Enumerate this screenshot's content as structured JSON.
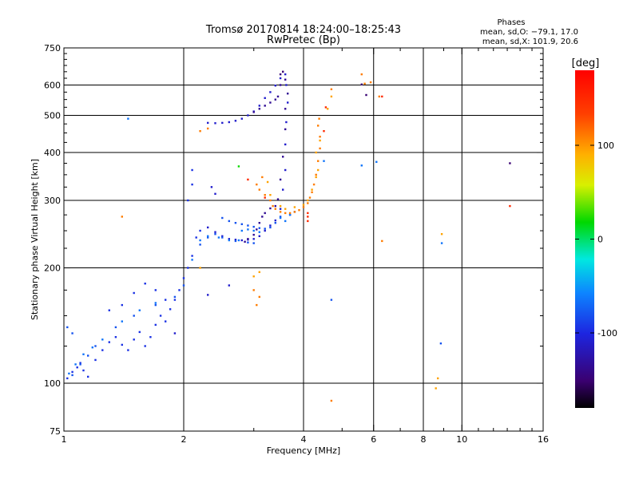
{
  "chart_data": {
    "type": "scatter",
    "title": "Tromsø 20170814 18:24:00–18:25:43",
    "subtitle": "RwPretec (Bp)",
    "xlabel": "Frequency [MHz]",
    "ylabel": "Stationary phase Virtual Height [km]",
    "x_scale": "log2",
    "y_scale": "log",
    "xlim": [
      1,
      16
    ],
    "ylim": [
      75,
      750
    ],
    "x_ticks": [
      1,
      2,
      4,
      6,
      8,
      10,
      16
    ],
    "x_tick_labels": [
      "1",
      "2",
      "4",
      "6",
      "8",
      "10",
      "16"
    ],
    "y_ticks": [
      75,
      100,
      200,
      300,
      400,
      500,
      600,
      750
    ],
    "y_tick_labels": [
      "75",
      "100",
      "200",
      "300",
      "400",
      "500",
      "600",
      "750"
    ],
    "grid": true,
    "stats": {
      "header": "Phases",
      "line1": "mean, sd,O: −79.1, 17.0",
      "line2": "mean, sd,X: 101.9, 20.6"
    },
    "colorbar": {
      "label": "[deg]",
      "min": -180,
      "max": 180,
      "ticks": [
        100,
        0,
        -100
      ],
      "tick_labels": [
        "100",
        "0",
        "-100"
      ]
    },
    "series": [
      {
        "phase": -95,
        "points": [
          [
            1.02,
            103
          ],
          [
            1.05,
            107
          ],
          [
            1.08,
            110
          ],
          [
            1.1,
            113
          ],
          [
            1.12,
            108
          ],
          [
            1.15,
            104
          ],
          [
            1.2,
            115
          ],
          [
            1.25,
            122
          ],
          [
            1.3,
            128
          ],
          [
            1.35,
            132
          ],
          [
            1.4,
            126
          ],
          [
            1.45,
            122
          ],
          [
            1.5,
            130
          ],
          [
            1.55,
            136
          ],
          [
            1.6,
            125
          ],
          [
            1.65,
            132
          ],
          [
            1.7,
            142
          ],
          [
            1.75,
            150
          ],
          [
            1.8,
            145
          ],
          [
            1.85,
            156
          ],
          [
            1.9,
            165
          ],
          [
            1.95,
            175
          ],
          [
            2.0,
            188
          ],
          [
            2.05,
            200
          ],
          [
            2.1,
            215
          ],
          [
            2.15,
            240
          ],
          [
            2.2,
            250
          ],
          [
            2.05,
            300
          ],
          [
            2.1,
            330
          ],
          [
            2.1,
            360
          ],
          [
            1.3,
            155
          ],
          [
            1.4,
            160
          ],
          [
            1.5,
            172
          ],
          [
            1.6,
            182
          ],
          [
            1.7,
            175
          ],
          [
            1.8,
            165
          ]
        ]
      },
      {
        "phase": -110,
        "points": [
          [
            2.3,
            255
          ],
          [
            2.4,
            248
          ],
          [
            2.5,
            242
          ],
          [
            2.6,
            238
          ],
          [
            2.7,
            237
          ],
          [
            2.8,
            236
          ],
          [
            2.9,
            237
          ],
          [
            3.0,
            238
          ],
          [
            3.1,
            242
          ],
          [
            3.2,
            250
          ],
          [
            3.3,
            258
          ],
          [
            3.4,
            266
          ],
          [
            3.5,
            285
          ],
          [
            3.55,
            320
          ],
          [
            3.6,
            360
          ],
          [
            3.6,
            420
          ],
          [
            3.62,
            480
          ],
          [
            3.65,
            540
          ],
          [
            3.62,
            600
          ],
          [
            3.6,
            640
          ],
          [
            3.5,
            625
          ],
          [
            3.4,
            598
          ],
          [
            3.3,
            575
          ],
          [
            3.2,
            555
          ],
          [
            3.1,
            530
          ],
          [
            3.0,
            512
          ],
          [
            2.9,
            500
          ],
          [
            2.8,
            490
          ],
          [
            2.7,
            484
          ],
          [
            2.6,
            480
          ],
          [
            2.5,
            478
          ],
          [
            2.4,
            477
          ],
          [
            2.3,
            478
          ],
          [
            2.35,
            325
          ],
          [
            2.4,
            312
          ],
          [
            2.6,
            180
          ],
          [
            2.3,
            170
          ],
          [
            1.9,
            135
          ]
        ]
      },
      {
        "phase": -135,
        "points": [
          [
            2.85,
            234
          ],
          [
            2.9,
            238
          ],
          [
            3.0,
            244
          ],
          [
            3.05,
            252
          ],
          [
            3.1,
            262
          ],
          [
            3.15,
            272
          ],
          [
            3.2,
            278
          ],
          [
            3.3,
            286
          ],
          [
            3.4,
            290
          ],
          [
            3.45,
            302
          ],
          [
            3.5,
            340
          ],
          [
            3.55,
            390
          ],
          [
            3.6,
            460
          ],
          [
            3.6,
            520
          ],
          [
            3.65,
            570
          ],
          [
            3.6,
            620
          ],
          [
            3.5,
            600
          ],
          [
            3.45,
            560
          ],
          [
            3.0,
            510
          ],
          [
            3.1,
            520
          ],
          [
            3.2,
            530
          ],
          [
            3.3,
            540
          ],
          [
            3.4,
            550
          ]
        ]
      },
      {
        "phase": -80,
        "points": [
          [
            1.05,
            105
          ],
          [
            1.1,
            112
          ],
          [
            1.15,
            118
          ],
          [
            1.2,
            125
          ],
          [
            1.35,
            140
          ],
          [
            1.5,
            150
          ],
          [
            1.7,
            160
          ],
          [
            1.9,
            168
          ],
          [
            2.0,
            180
          ],
          [
            2.2,
            230
          ],
          [
            2.3,
            240
          ],
          [
            2.4,
            245
          ],
          [
            2.5,
            240
          ],
          [
            2.7,
            235
          ],
          [
            2.9,
            233
          ],
          [
            3.0,
            232
          ],
          [
            2.5,
            270
          ],
          [
            2.6,
            265
          ],
          [
            2.7,
            262
          ],
          [
            2.8,
            260
          ],
          [
            2.9,
            258
          ],
          [
            3.0,
            256
          ],
          [
            3.1,
            254
          ],
          [
            3.2,
            253
          ],
          [
            3.3,
            255
          ],
          [
            3.4,
            262
          ],
          [
            3.5,
            272
          ],
          [
            3.7,
            275
          ],
          [
            3.8,
            280
          ],
          [
            4.7,
            165
          ],
          [
            8.85,
            127
          ],
          [
            1.02,
            140
          ],
          [
            1.05,
            135
          ]
        ]
      },
      {
        "phase": -65,
        "points": [
          [
            1.03,
            106
          ],
          [
            1.07,
            112
          ],
          [
            1.12,
            119
          ],
          [
            1.18,
            124
          ],
          [
            1.25,
            130
          ],
          [
            1.4,
            145
          ],
          [
            1.55,
            155
          ],
          [
            1.7,
            162
          ],
          [
            2.1,
            210
          ],
          [
            2.2,
            236
          ],
          [
            2.3,
            242
          ],
          [
            2.45,
            240
          ],
          [
            2.6,
            236
          ],
          [
            2.75,
            236
          ],
          [
            2.8,
            250
          ],
          [
            2.9,
            252
          ],
          [
            3.0,
            250
          ],
          [
            3.1,
            248
          ],
          [
            3.5,
            270
          ],
          [
            3.6,
            265
          ],
          [
            3.7,
            275
          ],
          [
            1.45,
            490
          ],
          [
            4.5,
            380
          ],
          [
            6.1,
            378
          ],
          [
            5.6,
            370
          ],
          [
            8.9,
            232
          ]
        ]
      },
      {
        "phase": 110,
        "points": [
          [
            3.3,
            300
          ],
          [
            3.35,
            290
          ],
          [
            3.4,
            285
          ],
          [
            3.5,
            280
          ],
          [
            3.6,
            278
          ],
          [
            3.7,
            278
          ],
          [
            3.8,
            280
          ],
          [
            3.9,
            283
          ],
          [
            4.0,
            288
          ],
          [
            4.1,
            295
          ],
          [
            4.15,
            305
          ],
          [
            4.2,
            315
          ],
          [
            4.25,
            330
          ],
          [
            4.3,
            350
          ],
          [
            4.35,
            380
          ],
          [
            4.4,
            410
          ],
          [
            4.4,
            440
          ],
          [
            4.35,
            470
          ],
          [
            4.38,
            490
          ],
          [
            3.2,
            310
          ],
          [
            3.1,
            320
          ],
          [
            3.05,
            330
          ],
          [
            3.15,
            345
          ],
          [
            4.7,
            585
          ],
          [
            5.6,
            640
          ],
          [
            5.7,
            605
          ],
          [
            5.9,
            610
          ],
          [
            6.2,
            560
          ],
          [
            4.7,
            90
          ],
          [
            6.3,
            235
          ],
          [
            3.0,
            175
          ],
          [
            3.05,
            160
          ],
          [
            3.1,
            168
          ],
          [
            2.2,
            455
          ],
          [
            2.3,
            462
          ],
          [
            1.4,
            272
          ]
        ]
      },
      {
        "phase": 95,
        "points": [
          [
            3.3,
            310
          ],
          [
            3.5,
            290
          ],
          [
            3.6,
            285
          ],
          [
            3.8,
            288
          ],
          [
            4.0,
            292
          ],
          [
            4.1,
            300
          ],
          [
            4.2,
            320
          ],
          [
            4.3,
            345
          ],
          [
            4.35,
            360
          ],
          [
            4.3,
            400
          ],
          [
            4.4,
            430
          ],
          [
            3.25,
            335
          ],
          [
            4.6,
            520
          ],
          [
            4.7,
            560
          ],
          [
            3.1,
            195
          ],
          [
            3.0,
            190
          ],
          [
            8.7,
            103
          ],
          [
            8.6,
            97
          ],
          [
            8.9,
            245
          ],
          [
            2.2,
            200
          ]
        ]
      },
      {
        "phase": 150,
        "points": [
          [
            4.1,
            265
          ],
          [
            4.1,
            272
          ],
          [
            4.1,
            278
          ],
          [
            4.5,
            455
          ],
          [
            4.55,
            525
          ],
          [
            6.3,
            560
          ],
          [
            13.2,
            290
          ],
          [
            3.2,
            305
          ],
          [
            2.9,
            340
          ]
        ]
      },
      {
        "phase": -150,
        "points": [
          [
            5.75,
            565
          ],
          [
            5.6,
            602
          ],
          [
            13.2,
            375
          ],
          [
            3.55,
            650
          ],
          [
            3.5,
            640
          ]
        ]
      },
      {
        "phase": 20,
        "points": [
          [
            2.75,
            368
          ]
        ]
      }
    ]
  }
}
